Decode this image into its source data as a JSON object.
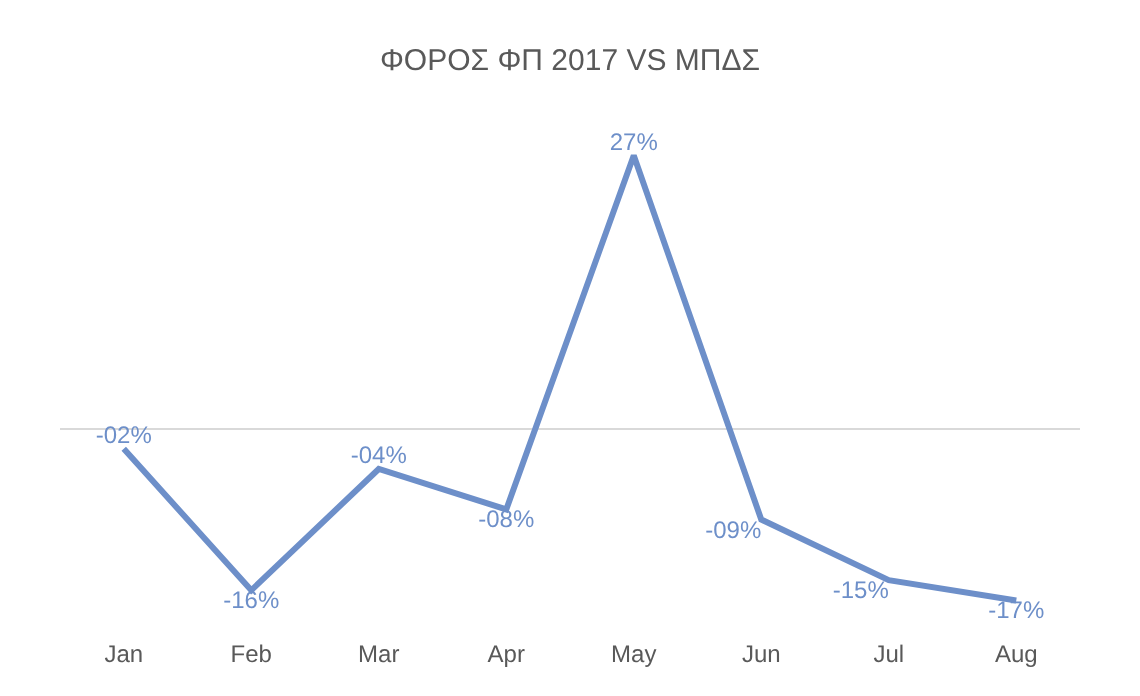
{
  "chart_data": {
    "type": "line",
    "title": "ΦΟΡΟΣ ΦΠ 2017 VS ΜΠΔΣ",
    "categories": [
      "Jan",
      "Feb",
      "Mar",
      "Apr",
      "May",
      "Jun",
      "Jul",
      "Aug"
    ],
    "series": [
      {
        "color": "#6d8fc9",
        "values": [
          -2,
          -16,
          -4,
          -8,
          27,
          -9,
          -15,
          -17
        ],
        "value_labels": [
          "-02%",
          "-16%",
          "-04%",
          "-08%",
          "27%",
          "-09%",
          "-15%",
          "-17%"
        ]
      }
    ],
    "marker": "none",
    "line_style": "solid",
    "tick_labels": "x"
  }
}
